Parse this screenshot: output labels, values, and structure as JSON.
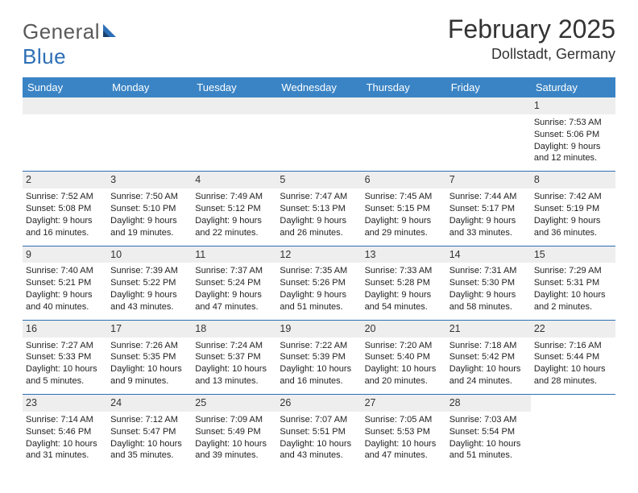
{
  "brand": {
    "part1": "General",
    "part2": "Blue"
  },
  "colors": {
    "header_bg": "#3a84c5",
    "header_text": "#ffffff",
    "daynum_bg": "#eeeeee",
    "accent": "#2d6fb6",
    "logo_gray": "#5a5a5a"
  },
  "title": "February 2025",
  "location": "Dollstadt, Germany",
  "days_of_week": [
    "Sunday",
    "Monday",
    "Tuesday",
    "Wednesday",
    "Thursday",
    "Friday",
    "Saturday"
  ],
  "weeks": [
    [
      null,
      null,
      null,
      null,
      null,
      null,
      {
        "n": "1",
        "sunrise": "Sunrise: 7:53 AM",
        "sunset": "Sunset: 5:06 PM",
        "daylight": "Daylight: 9 hours and 12 minutes."
      }
    ],
    [
      {
        "n": "2",
        "sunrise": "Sunrise: 7:52 AM",
        "sunset": "Sunset: 5:08 PM",
        "daylight": "Daylight: 9 hours and 16 minutes."
      },
      {
        "n": "3",
        "sunrise": "Sunrise: 7:50 AM",
        "sunset": "Sunset: 5:10 PM",
        "daylight": "Daylight: 9 hours and 19 minutes."
      },
      {
        "n": "4",
        "sunrise": "Sunrise: 7:49 AM",
        "sunset": "Sunset: 5:12 PM",
        "daylight": "Daylight: 9 hours and 22 minutes."
      },
      {
        "n": "5",
        "sunrise": "Sunrise: 7:47 AM",
        "sunset": "Sunset: 5:13 PM",
        "daylight": "Daylight: 9 hours and 26 minutes."
      },
      {
        "n": "6",
        "sunrise": "Sunrise: 7:45 AM",
        "sunset": "Sunset: 5:15 PM",
        "daylight": "Daylight: 9 hours and 29 minutes."
      },
      {
        "n": "7",
        "sunrise": "Sunrise: 7:44 AM",
        "sunset": "Sunset: 5:17 PM",
        "daylight": "Daylight: 9 hours and 33 minutes."
      },
      {
        "n": "8",
        "sunrise": "Sunrise: 7:42 AM",
        "sunset": "Sunset: 5:19 PM",
        "daylight": "Daylight: 9 hours and 36 minutes."
      }
    ],
    [
      {
        "n": "9",
        "sunrise": "Sunrise: 7:40 AM",
        "sunset": "Sunset: 5:21 PM",
        "daylight": "Daylight: 9 hours and 40 minutes."
      },
      {
        "n": "10",
        "sunrise": "Sunrise: 7:39 AM",
        "sunset": "Sunset: 5:22 PM",
        "daylight": "Daylight: 9 hours and 43 minutes."
      },
      {
        "n": "11",
        "sunrise": "Sunrise: 7:37 AM",
        "sunset": "Sunset: 5:24 PM",
        "daylight": "Daylight: 9 hours and 47 minutes."
      },
      {
        "n": "12",
        "sunrise": "Sunrise: 7:35 AM",
        "sunset": "Sunset: 5:26 PM",
        "daylight": "Daylight: 9 hours and 51 minutes."
      },
      {
        "n": "13",
        "sunrise": "Sunrise: 7:33 AM",
        "sunset": "Sunset: 5:28 PM",
        "daylight": "Daylight: 9 hours and 54 minutes."
      },
      {
        "n": "14",
        "sunrise": "Sunrise: 7:31 AM",
        "sunset": "Sunset: 5:30 PM",
        "daylight": "Daylight: 9 hours and 58 minutes."
      },
      {
        "n": "15",
        "sunrise": "Sunrise: 7:29 AM",
        "sunset": "Sunset: 5:31 PM",
        "daylight": "Daylight: 10 hours and 2 minutes."
      }
    ],
    [
      {
        "n": "16",
        "sunrise": "Sunrise: 7:27 AM",
        "sunset": "Sunset: 5:33 PM",
        "daylight": "Daylight: 10 hours and 5 minutes."
      },
      {
        "n": "17",
        "sunrise": "Sunrise: 7:26 AM",
        "sunset": "Sunset: 5:35 PM",
        "daylight": "Daylight: 10 hours and 9 minutes."
      },
      {
        "n": "18",
        "sunrise": "Sunrise: 7:24 AM",
        "sunset": "Sunset: 5:37 PM",
        "daylight": "Daylight: 10 hours and 13 minutes."
      },
      {
        "n": "19",
        "sunrise": "Sunrise: 7:22 AM",
        "sunset": "Sunset: 5:39 PM",
        "daylight": "Daylight: 10 hours and 16 minutes."
      },
      {
        "n": "20",
        "sunrise": "Sunrise: 7:20 AM",
        "sunset": "Sunset: 5:40 PM",
        "daylight": "Daylight: 10 hours and 20 minutes."
      },
      {
        "n": "21",
        "sunrise": "Sunrise: 7:18 AM",
        "sunset": "Sunset: 5:42 PM",
        "daylight": "Daylight: 10 hours and 24 minutes."
      },
      {
        "n": "22",
        "sunrise": "Sunrise: 7:16 AM",
        "sunset": "Sunset: 5:44 PM",
        "daylight": "Daylight: 10 hours and 28 minutes."
      }
    ],
    [
      {
        "n": "23",
        "sunrise": "Sunrise: 7:14 AM",
        "sunset": "Sunset: 5:46 PM",
        "daylight": "Daylight: 10 hours and 31 minutes."
      },
      {
        "n": "24",
        "sunrise": "Sunrise: 7:12 AM",
        "sunset": "Sunset: 5:47 PM",
        "daylight": "Daylight: 10 hours and 35 minutes."
      },
      {
        "n": "25",
        "sunrise": "Sunrise: 7:09 AM",
        "sunset": "Sunset: 5:49 PM",
        "daylight": "Daylight: 10 hours and 39 minutes."
      },
      {
        "n": "26",
        "sunrise": "Sunrise: 7:07 AM",
        "sunset": "Sunset: 5:51 PM",
        "daylight": "Daylight: 10 hours and 43 minutes."
      },
      {
        "n": "27",
        "sunrise": "Sunrise: 7:05 AM",
        "sunset": "Sunset: 5:53 PM",
        "daylight": "Daylight: 10 hours and 47 minutes."
      },
      {
        "n": "28",
        "sunrise": "Sunrise: 7:03 AM",
        "sunset": "Sunset: 5:54 PM",
        "daylight": "Daylight: 10 hours and 51 minutes."
      },
      null
    ]
  ]
}
